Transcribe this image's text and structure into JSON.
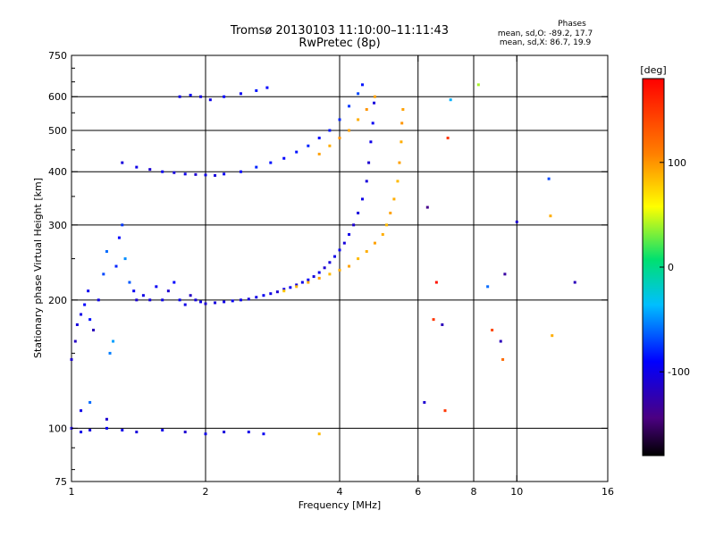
{
  "header": {
    "title_line1": "Tromsø 20130103 11:10:00–11:11:43",
    "title_line2": "RwPretec (8p)",
    "stats_title": "Phases",
    "stats_o": "mean, sd,O: -89.2, 17.7",
    "stats_x": "mean, sd,X:  86.7, 19.9"
  },
  "colorbar": {
    "label": "[deg]",
    "ticks": [
      {
        "value": 100,
        "label": "100"
      },
      {
        "value": 0,
        "label": "0"
      },
      {
        "value": -100,
        "label": "-100"
      }
    ],
    "range": [
      -180,
      180
    ]
  },
  "chart_data": {
    "type": "scatter",
    "xlabel": "Frequency [MHz]",
    "ylabel": "Stationary phase Virtual Height [km]",
    "xscale": "log",
    "yscale": "log",
    "xlim": [
      1,
      16
    ],
    "ylim": [
      75,
      750
    ],
    "x_ticks": [
      {
        "v": 1,
        "label": "1"
      },
      {
        "v": 2,
        "label": "2"
      },
      {
        "v": 4,
        "label": "4"
      },
      {
        "v": 6,
        "label": "6"
      },
      {
        "v": 8,
        "label": "8"
      },
      {
        "v": 10,
        "label": "10"
      },
      {
        "v": 16,
        "label": "16"
      }
    ],
    "x_grid": [
      2,
      4,
      6,
      8,
      10
    ],
    "y_ticks": [
      {
        "v": 75,
        "label": "75"
      },
      {
        "v": 100,
        "label": "100"
      },
      {
        "v": 200,
        "label": "200"
      },
      {
        "v": 300,
        "label": "300"
      },
      {
        "v": 400,
        "label": "400"
      },
      {
        "v": 500,
        "label": "500"
      },
      {
        "v": 600,
        "label": "600"
      },
      {
        "v": 750,
        "label": "750"
      }
    ],
    "y_grid": [
      100,
      200,
      300,
      400,
      500,
      600
    ],
    "grid": true,
    "series": [
      {
        "color_by": "phase",
        "points": [
          {
            "x": 1.0,
            "y": 145,
            "p": -110
          },
          {
            "x": 1.02,
            "y": 160,
            "p": -115
          },
          {
            "x": 1.03,
            "y": 175,
            "p": -105
          },
          {
            "x": 1.05,
            "y": 185,
            "p": -100
          },
          {
            "x": 1.07,
            "y": 195,
            "p": -90
          },
          {
            "x": 1.09,
            "y": 210,
            "p": -95
          },
          {
            "x": 1.1,
            "y": 180,
            "p": -85
          },
          {
            "x": 1.12,
            "y": 170,
            "p": -120
          },
          {
            "x": 1.15,
            "y": 200,
            "p": -100
          },
          {
            "x": 1.18,
            "y": 230,
            "p": -70
          },
          {
            "x": 1.2,
            "y": 260,
            "p": -60
          },
          {
            "x": 1.22,
            "y": 150,
            "p": -55
          },
          {
            "x": 1.24,
            "y": 160,
            "p": -45
          },
          {
            "x": 1.26,
            "y": 240,
            "p": -80
          },
          {
            "x": 1.28,
            "y": 280,
            "p": -90
          },
          {
            "x": 1.3,
            "y": 300,
            "p": -75
          },
          {
            "x": 1.32,
            "y": 250,
            "p": -50
          },
          {
            "x": 1.35,
            "y": 220,
            "p": -65
          },
          {
            "x": 1.38,
            "y": 210,
            "p": -95
          },
          {
            "x": 1.4,
            "y": 200,
            "p": -110
          },
          {
            "x": 1.45,
            "y": 205,
            "p": -100
          },
          {
            "x": 1.5,
            "y": 200,
            "p": -105
          },
          {
            "x": 1.55,
            "y": 215,
            "p": -95
          },
          {
            "x": 1.6,
            "y": 200,
            "p": -100
          },
          {
            "x": 1.65,
            "y": 210,
            "p": -110
          },
          {
            "x": 1.7,
            "y": 220,
            "p": -90
          },
          {
            "x": 1.75,
            "y": 200,
            "p": -95
          },
          {
            "x": 1.8,
            "y": 195,
            "p": -100
          },
          {
            "x": 1.85,
            "y": 205,
            "p": -115
          },
          {
            "x": 1.9,
            "y": 200,
            "p": -105
          },
          {
            "x": 1.95,
            "y": 198,
            "p": -100
          },
          {
            "x": 2.0,
            "y": 196,
            "p": -110
          },
          {
            "x": 2.1,
            "y": 197,
            "p": -105
          },
          {
            "x": 2.2,
            "y": 198,
            "p": -100
          },
          {
            "x": 2.3,
            "y": 199,
            "p": -95
          },
          {
            "x": 2.4,
            "y": 200,
            "p": -100
          },
          {
            "x": 2.5,
            "y": 201,
            "p": -105
          },
          {
            "x": 2.6,
            "y": 203,
            "p": -100
          },
          {
            "x": 2.7,
            "y": 205,
            "p": -95
          },
          {
            "x": 2.8,
            "y": 207,
            "p": -100
          },
          {
            "x": 2.9,
            "y": 209,
            "p": -110
          },
          {
            "x": 3.0,
            "y": 212,
            "p": -100
          },
          {
            "x": 3.1,
            "y": 214,
            "p": -95
          },
          {
            "x": 3.2,
            "y": 217,
            "p": -105
          },
          {
            "x": 3.3,
            "y": 220,
            "p": -100
          },
          {
            "x": 3.4,
            "y": 223,
            "p": -95
          },
          {
            "x": 3.5,
            "y": 227,
            "p": -105
          },
          {
            "x": 3.6,
            "y": 232,
            "p": -100
          },
          {
            "x": 3.7,
            "y": 238,
            "p": -110
          },
          {
            "x": 3.8,
            "y": 245,
            "p": -105
          },
          {
            "x": 3.9,
            "y": 253,
            "p": -100
          },
          {
            "x": 4.0,
            "y": 262,
            "p": -95
          },
          {
            "x": 4.1,
            "y": 272,
            "p": -105
          },
          {
            "x": 4.2,
            "y": 285,
            "p": -100
          },
          {
            "x": 4.3,
            "y": 300,
            "p": -110
          },
          {
            "x": 4.4,
            "y": 320,
            "p": -105
          },
          {
            "x": 4.5,
            "y": 345,
            "p": -100
          },
          {
            "x": 4.6,
            "y": 380,
            "p": -105
          },
          {
            "x": 4.65,
            "y": 420,
            "p": -110
          },
          {
            "x": 4.7,
            "y": 470,
            "p": -100
          },
          {
            "x": 4.75,
            "y": 520,
            "p": -95
          },
          {
            "x": 4.78,
            "y": 580,
            "p": -105
          },
          {
            "x": 3.0,
            "y": 210,
            "p": 80
          },
          {
            "x": 3.2,
            "y": 215,
            "p": 85
          },
          {
            "x": 3.4,
            "y": 220,
            "p": 90
          },
          {
            "x": 3.6,
            "y": 225,
            "p": 95
          },
          {
            "x": 3.8,
            "y": 230,
            "p": 85
          },
          {
            "x": 4.0,
            "y": 235,
            "p": 90
          },
          {
            "x": 4.2,
            "y": 240,
            "p": 95
          },
          {
            "x": 4.4,
            "y": 250,
            "p": 85
          },
          {
            "x": 4.6,
            "y": 260,
            "p": 90
          },
          {
            "x": 4.8,
            "y": 272,
            "p": 95
          },
          {
            "x": 5.0,
            "y": 285,
            "p": 90
          },
          {
            "x": 5.1,
            "y": 300,
            "p": 85
          },
          {
            "x": 5.2,
            "y": 320,
            "p": 95
          },
          {
            "x": 5.3,
            "y": 345,
            "p": 90
          },
          {
            "x": 5.4,
            "y": 380,
            "p": 85
          },
          {
            "x": 5.45,
            "y": 420,
            "p": 95
          },
          {
            "x": 5.5,
            "y": 470,
            "p": 90
          },
          {
            "x": 5.52,
            "y": 520,
            "p": 100
          },
          {
            "x": 5.55,
            "y": 560,
            "p": 95
          },
          {
            "x": 1.3,
            "y": 420,
            "p": -105
          },
          {
            "x": 1.4,
            "y": 410,
            "p": -100
          },
          {
            "x": 1.5,
            "y": 405,
            "p": -110
          },
          {
            "x": 1.6,
            "y": 400,
            "p": -95
          },
          {
            "x": 1.7,
            "y": 398,
            "p": -105
          },
          {
            "x": 1.8,
            "y": 395,
            "p": -100
          },
          {
            "x": 1.9,
            "y": 394,
            "p": -110
          },
          {
            "x": 2.0,
            "y": 393,
            "p": -100
          },
          {
            "x": 2.1,
            "y": 392,
            "p": -105
          },
          {
            "x": 2.2,
            "y": 395,
            "p": -95
          },
          {
            "x": 2.4,
            "y": 400,
            "p": -90
          },
          {
            "x": 2.6,
            "y": 410,
            "p": -80
          },
          {
            "x": 2.8,
            "y": 420,
            "p": -85
          },
          {
            "x": 3.0,
            "y": 430,
            "p": -90
          },
          {
            "x": 3.2,
            "y": 445,
            "p": -85
          },
          {
            "x": 3.4,
            "y": 460,
            "p": -80
          },
          {
            "x": 3.6,
            "y": 480,
            "p": -90
          },
          {
            "x": 3.8,
            "y": 500,
            "p": -85
          },
          {
            "x": 4.0,
            "y": 530,
            "p": -80
          },
          {
            "x": 4.2,
            "y": 570,
            "p": -75
          },
          {
            "x": 4.4,
            "y": 610,
            "p": -70
          },
          {
            "x": 4.5,
            "y": 640,
            "p": -85
          },
          {
            "x": 3.6,
            "y": 440,
            "p": 95
          },
          {
            "x": 3.8,
            "y": 460,
            "p": 90
          },
          {
            "x": 4.0,
            "y": 480,
            "p": 100
          },
          {
            "x": 4.2,
            "y": 500,
            "p": 95
          },
          {
            "x": 4.4,
            "y": 530,
            "p": 90
          },
          {
            "x": 4.6,
            "y": 560,
            "p": 100
          },
          {
            "x": 4.8,
            "y": 600,
            "p": 95
          },
          {
            "x": 1.75,
            "y": 600,
            "p": -100
          },
          {
            "x": 1.85,
            "y": 605,
            "p": -95
          },
          {
            "x": 1.95,
            "y": 600,
            "p": -105
          },
          {
            "x": 2.05,
            "y": 590,
            "p": -100
          },
          {
            "x": 2.2,
            "y": 600,
            "p": -90
          },
          {
            "x": 2.4,
            "y": 610,
            "p": -95
          },
          {
            "x": 2.6,
            "y": 620,
            "p": -85
          },
          {
            "x": 2.75,
            "y": 630,
            "p": -90
          },
          {
            "x": 1.0,
            "y": 100,
            "p": -110
          },
          {
            "x": 1.05,
            "y": 98,
            "p": -100
          },
          {
            "x": 1.1,
            "y": 99,
            "p": -105
          },
          {
            "x": 1.2,
            "y": 100,
            "p": -95
          },
          {
            "x": 1.3,
            "y": 99,
            "p": -100
          },
          {
            "x": 1.4,
            "y": 98,
            "p": -105
          },
          {
            "x": 1.6,
            "y": 99,
            "p": -100
          },
          {
            "x": 1.8,
            "y": 98,
            "p": -110
          },
          {
            "x": 2.0,
            "y": 97,
            "p": -100
          },
          {
            "x": 2.2,
            "y": 98,
            "p": -105
          },
          {
            "x": 2.5,
            "y": 98,
            "p": -100
          },
          {
            "x": 2.7,
            "y": 97,
            "p": -95
          },
          {
            "x": 3.6,
            "y": 97,
            "p": 85
          },
          {
            "x": 1.05,
            "y": 110,
            "p": -100
          },
          {
            "x": 1.1,
            "y": 115,
            "p": -60
          },
          {
            "x": 1.2,
            "y": 105,
            "p": -110
          },
          {
            "x": 6.3,
            "y": 330,
            "p": -140
          },
          {
            "x": 6.2,
            "y": 115,
            "p": -110
          },
          {
            "x": 6.5,
            "y": 180,
            "p": 150
          },
          {
            "x": 6.8,
            "y": 175,
            "p": -120
          },
          {
            "x": 6.9,
            "y": 110,
            "p": 150
          },
          {
            "x": 7.0,
            "y": 480,
            "p": 150
          },
          {
            "x": 7.1,
            "y": 590,
            "p": -40
          },
          {
            "x": 8.2,
            "y": 640,
            "p": 40
          },
          {
            "x": 8.8,
            "y": 170,
            "p": 140
          },
          {
            "x": 9.2,
            "y": 160,
            "p": -120
          },
          {
            "x": 9.4,
            "y": 230,
            "p": -130
          },
          {
            "x": 10.0,
            "y": 305,
            "p": -110
          },
          {
            "x": 11.8,
            "y": 385,
            "p": -70
          },
          {
            "x": 11.9,
            "y": 315,
            "p": 90
          },
          {
            "x": 12.0,
            "y": 165,
            "p": 90
          },
          {
            "x": 13.5,
            "y": 220,
            "p": -120
          },
          {
            "x": 9.3,
            "y": 145,
            "p": 120
          },
          {
            "x": 8.6,
            "y": 215,
            "p": -60
          },
          {
            "x": 6.6,
            "y": 220,
            "p": 170
          }
        ]
      }
    ]
  }
}
